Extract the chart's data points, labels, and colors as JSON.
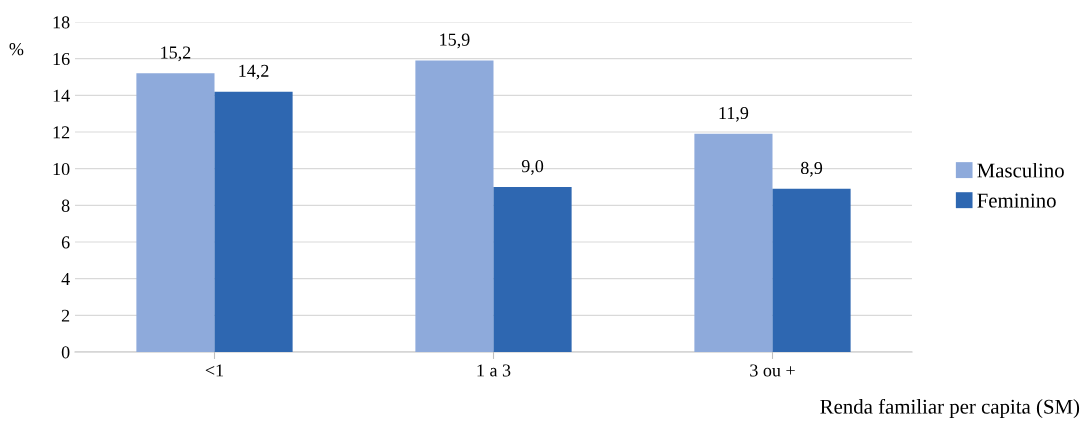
{
  "chart_data": {
    "type": "bar",
    "categories": [
      "<1",
      "1 a 3",
      "3 ou +"
    ],
    "series": [
      {
        "name": "Masculino",
        "color": "#8eaadb",
        "values": [
          15.2,
          15.9,
          11.9
        ],
        "value_labels": [
          "15,2",
          "15,9",
          "11,9"
        ]
      },
      {
        "name": "Feminino",
        "color": "#2e67b1",
        "values": [
          14.2,
          9.0,
          8.9
        ],
        "value_labels": [
          "14,2",
          "9,0",
          "8,9"
        ]
      }
    ],
    "ylabel": "%",
    "xlabel": "Renda familiar per capita (SM)",
    "ylim": [
      0,
      18
    ],
    "yticks": [
      0,
      2,
      4,
      6,
      8,
      10,
      12,
      14,
      16,
      18
    ],
    "grid": "y",
    "legend": "right"
  }
}
